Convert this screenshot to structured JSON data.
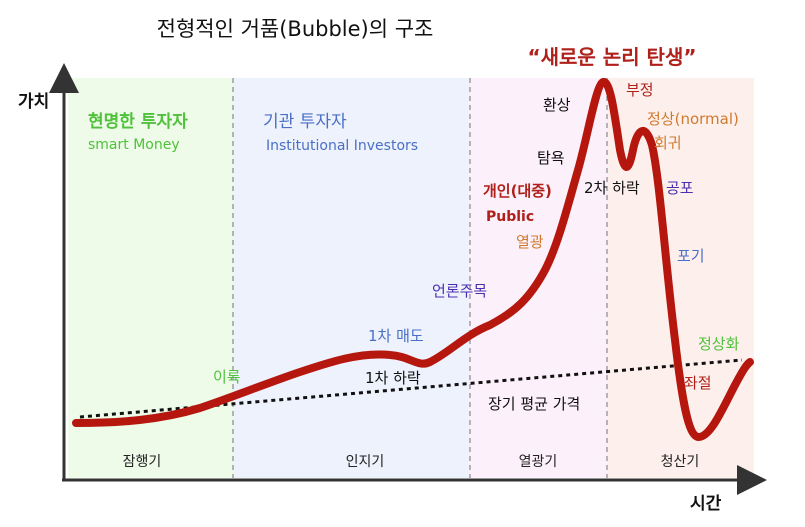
{
  "title": "전형적인 거품(Bubble)의 구조",
  "headline": "“새로운 논리 탄생”",
  "y_axis_label": "가치",
  "x_axis_label": "시간",
  "colors": {
    "curve": "#b5170f",
    "stage_1_bg": "#eefbe8",
    "stage_2_bg": "#eef2fc",
    "stage_3_bg": "#fcf0fa",
    "stage_4_bg": "#fdf0ec",
    "green": "#4fc13a",
    "blue": "#4a6fc8",
    "purple": "#4a2fb0",
    "orange": "#d07a2e",
    "darkred": "#b0201a"
  },
  "stages": [
    {
      "label": "잠행기"
    },
    {
      "label": "인지기"
    },
    {
      "label": "열광기"
    },
    {
      "label": "청산기"
    }
  ],
  "investors": {
    "smart_ko": "현명한 투자자",
    "smart_en": "smart Money",
    "inst_ko": "기관 투자자",
    "inst_en": "Institutional Investors",
    "public_ko": "개인(대중)",
    "public_en": "Public"
  },
  "annotations": {
    "profit": "이륙",
    "first_sell": "1차 매도",
    "first_drop": "1차 하락",
    "media": "언론주목",
    "mania": "열광",
    "greed": "탐욕",
    "delusion": "환상",
    "second_drop": "2차 하락",
    "denial": "부정",
    "return_normal_1": "정상(normal)",
    "return_normal_2": "회귀",
    "fear": "공포",
    "capitulation": "포기",
    "normalization": "정상화",
    "despair": "좌절",
    "long_term_mean": "장기 평균 가격"
  }
}
